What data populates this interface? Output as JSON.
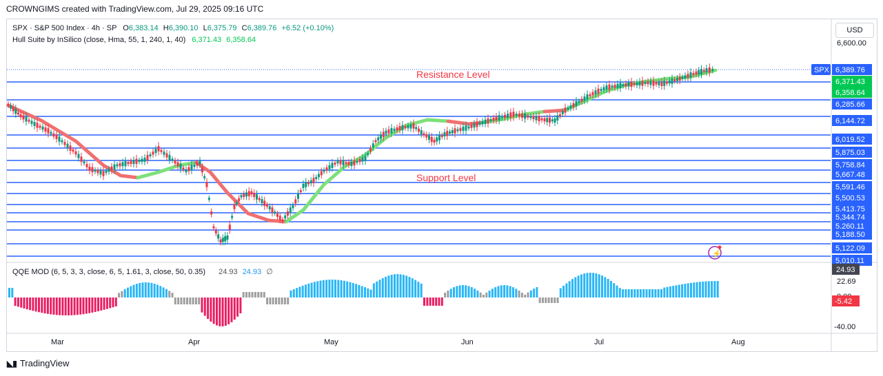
{
  "header": {
    "text": "CROWNGIMS created with TradingView.com, Jul 29, 2025 09:16 UTC"
  },
  "legend": {
    "symbol": "SPX · S&P 500 Index · 4h · SP",
    "o_label": "O",
    "o_val": "6,383.14",
    "h_label": "H",
    "h_val": "6,390.10",
    "l_label": "L",
    "l_val": "6,375.79",
    "c_label": "C",
    "c_val": "6,389.76",
    "change": "+6.52 (+0.10%)",
    "hull_name": "Hull Suite by InSilico (close, Hma, 55, 1, 240, 1, 40)",
    "hull_v1": "6,371.43",
    "hull_v2": "6,358.64",
    "qqe_name": "QQE MOD (6, 5, 3, 3, close, 6, 5, 1.61, 3, close, 50, 0.35)",
    "qqe_v1": "24.93",
    "qqe_v2": "24.93",
    "qqe_v3": "∅"
  },
  "currency_button": "USD",
  "annotations": {
    "resistance": "Resistance Level",
    "support": "Support Level"
  },
  "price_axis": {
    "top_label": "6,600.00",
    "badges": [
      {
        "label": "SPX",
        "text": "6,389.76",
        "color": "#2962ff"
      },
      {
        "text": "6,371.43",
        "color": "#00c853"
      },
      {
        "text": "6,358.64",
        "color": "#00c853"
      }
    ],
    "levels": [
      "6,285.66",
      "6,144.72",
      "6,019.52",
      "5,875.03",
      "5,758.84",
      "5,667.48",
      "5,591.46",
      "5,500.53",
      "5,413.75",
      "5,344.74",
      "5,260.11",
      "5,188.50",
      "5,122.09",
      "5,010.11"
    ],
    "level_color": "#2962ff"
  },
  "qqe_axis": {
    "badge_top": {
      "text": "24.93",
      "color": "#434651"
    },
    "label_mid": "22.69",
    "label_zero": "0.00",
    "badge_neg": {
      "text": "-5.42",
      "color": "#f23645"
    },
    "label_bottom": "-40.00"
  },
  "time_axis": {
    "labels": [
      "Mar",
      "Apr",
      "May",
      "Jun",
      "Jul",
      "Aug"
    ]
  },
  "footer": {
    "logo": "TradingView"
  },
  "colors": {
    "bull": "#089981",
    "bear": "#f23645",
    "hull_up": "#7ee07a",
    "hull_down": "#f07070",
    "qqe_blue": "#29b6f6",
    "qqe_grey": "#9e9e9e",
    "qqe_red": "#e91e63"
  }
}
